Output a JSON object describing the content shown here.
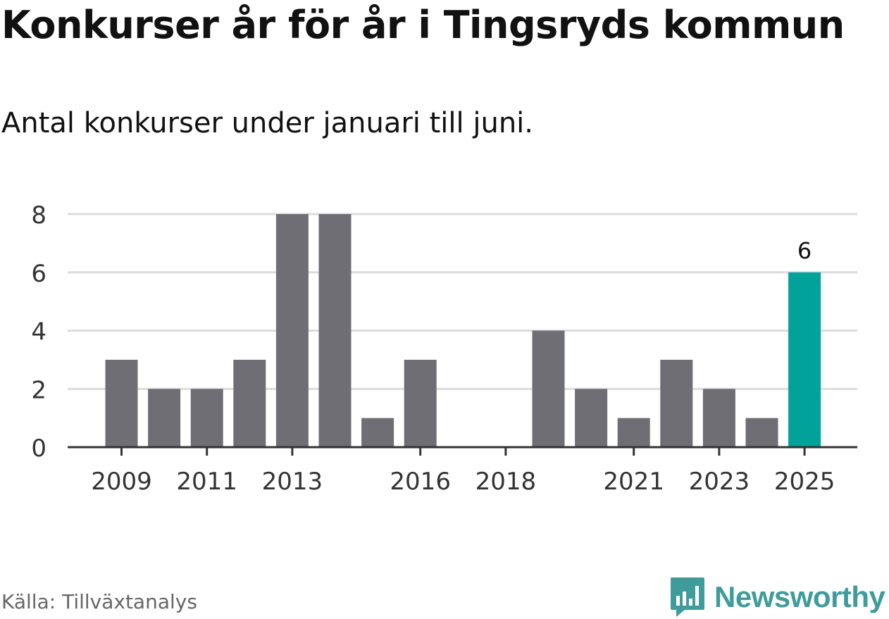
{
  "title": "Konkurser år för år i Tingsryds kommun",
  "subtitle": "Antal konkurser under januari till juni.",
  "source": "Källa: Tillväxtanalys",
  "brand": "Newsworthy",
  "colors": {
    "bar": "#6f6e74",
    "highlight": "#00a29a",
    "grid": "#dcdcdc",
    "axis": "#333333",
    "brand": "#3f9c9a"
  },
  "chart_data": {
    "type": "bar",
    "categories": [
      "2009",
      "2010",
      "2011",
      "2012",
      "2013",
      "2014",
      "2015",
      "2016",
      "2017",
      "2018",
      "2019",
      "2020",
      "2021",
      "2022",
      "2023",
      "2024",
      "2025"
    ],
    "values": [
      3,
      2,
      2,
      3,
      8,
      8,
      1,
      3,
      0,
      0,
      4,
      2,
      1,
      3,
      2,
      1,
      6
    ],
    "x_tick_labels": [
      "2009",
      "2011",
      "2013",
      "2016",
      "2018",
      "2021",
      "2023",
      "2025"
    ],
    "y_ticks": [
      0,
      2,
      4,
      6,
      8
    ],
    "ylim": [
      0,
      8
    ],
    "highlight": "2025",
    "data_labels": [
      {
        "category": "2025",
        "text": "6"
      }
    ],
    "grid": true
  }
}
